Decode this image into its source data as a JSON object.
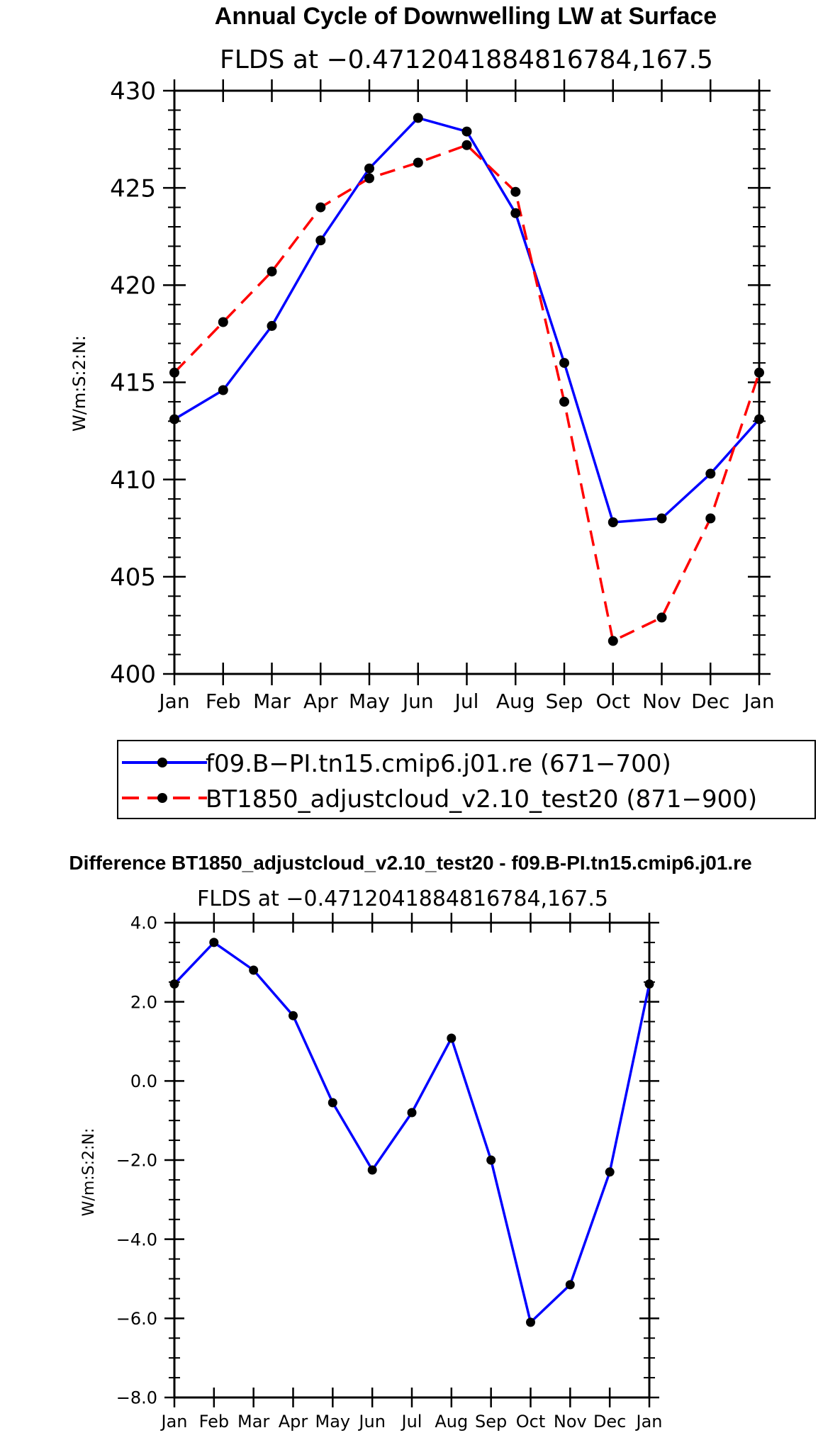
{
  "chart_data": [
    {
      "type": "line",
      "title": "Annual Cycle of Downwelling LW at Surface",
      "subtitle": "FLDS at −0.4712041884816784,167.5",
      "ylabel": "W/m:S:2:N:",
      "ylim": [
        400,
        430
      ],
      "yticks": [
        400,
        405,
        410,
        415,
        420,
        425,
        430
      ],
      "ytick_labels": [
        "400",
        "405",
        "410",
        "415",
        "420",
        "425",
        "430"
      ],
      "categories": [
        "Jan",
        "Feb",
        "Mar",
        "Apr",
        "May",
        "Jun",
        "Jul",
        "Aug",
        "Sep",
        "Oct",
        "Nov",
        "Dec",
        "Jan"
      ],
      "series": [
        {
          "name": "f09.B−PI.tn15.cmip6.j01.re (671−700)",
          "color": "#0000ff",
          "dash": "solid",
          "values": [
            413.1,
            414.6,
            417.9,
            422.3,
            426.0,
            428.6,
            427.9,
            423.7,
            416.0,
            407.8,
            408.0,
            410.3,
            413.1
          ]
        },
        {
          "name": "BT1850_adjustcloud_v2.10_test20 (871−900)",
          "color": "#ff0000",
          "dash": "dashed",
          "values": [
            415.5,
            418.1,
            420.7,
            424.0,
            425.5,
            426.3,
            427.2,
            424.8,
            414.0,
            401.7,
            402.9,
            408.0,
            415.5
          ]
        }
      ],
      "legend_position": "bottom-center"
    },
    {
      "type": "line",
      "title": "Difference BT1850_adjustcloud_v2.10_test20 - f09.B-PI.tn15.cmip6.j01.re",
      "subtitle": "FLDS at −0.4712041884816784,167.5",
      "ylabel": "W/m:S:2:N:",
      "ylim": [
        -8,
        4
      ],
      "yticks": [
        -8,
        -6,
        -4,
        -2,
        0,
        2,
        4
      ],
      "ytick_labels": [
        "−8.0",
        "−6.0",
        "−4.0",
        "−2.0",
        "0.0",
        "2.0",
        "4.0"
      ],
      "categories": [
        "Jan",
        "Feb",
        "Mar",
        "Apr",
        "May",
        "Jun",
        "Jul",
        "Aug",
        "Sep",
        "Oct",
        "Nov",
        "Dec",
        "Jan"
      ],
      "series": [
        {
          "name": "Difference",
          "color": "#0000ff",
          "dash": "solid",
          "values": [
            2.45,
            3.5,
            2.8,
            1.65,
            -0.55,
            -2.25,
            -0.8,
            1.08,
            -2.0,
            -6.1,
            -5.15,
            -2.3,
            2.45
          ]
        }
      ]
    }
  ]
}
